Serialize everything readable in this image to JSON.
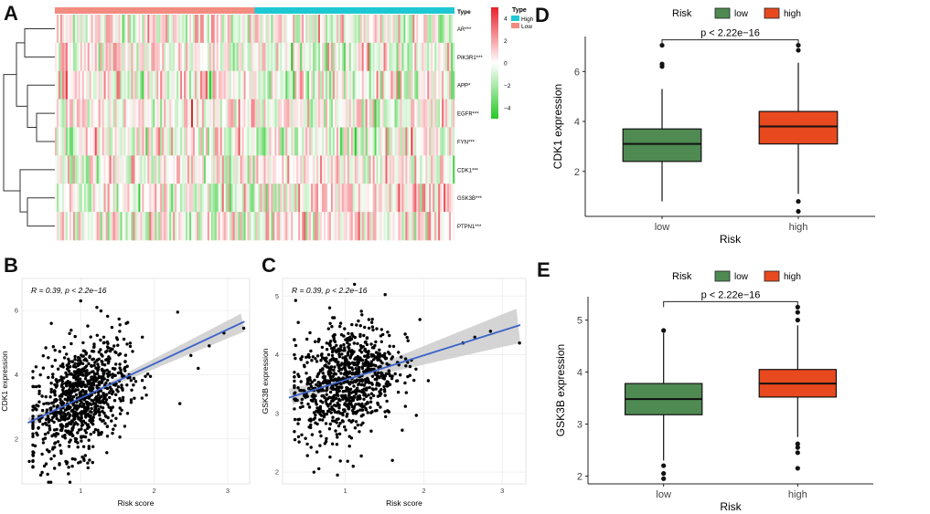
{
  "panel_letters": {
    "a": "A",
    "b": "B",
    "c": "C",
    "d": "D",
    "e": "E"
  },
  "colors": {
    "low_box": "#4e8a52",
    "high_box": "#e8491f",
    "type_high": "#1ec8d2",
    "type_low": "#f28b80",
    "heat_pos": "#e8202a",
    "heat_neg": "#28c828",
    "reg_line": "#3a62c9",
    "ci_band": "#c9c9c9"
  },
  "chart_data": [
    {
      "id": "A",
      "type": "heatmap",
      "annotation_title": "Type",
      "genes": [
        "AR***",
        "PIK3R1***",
        "APP*",
        "EGFR***",
        "FYN***",
        "CDK1***",
        "GSK3B***",
        "PTPN1***"
      ],
      "gene_direction_in_high": [
        -1,
        -1,
        -1,
        -1,
        -1,
        1,
        1,
        1
      ],
      "groups": [
        {
          "name": "Low",
          "fraction": 0.5
        },
        {
          "name": "High",
          "fraction": 0.5
        }
      ],
      "legend_type": {
        "title": "Type",
        "items": [
          "High",
          "Low"
        ]
      },
      "colorbar": {
        "ticks": [
          4,
          2,
          0,
          -2,
          -4
        ],
        "tick_labels": [
          "4",
          "2",
          "0",
          "−2",
          "−4"
        ],
        "min": -5,
        "max": 5
      }
    },
    {
      "id": "B",
      "type": "scatter",
      "xlabel": "Risk score",
      "ylabel": "CDK1 expression",
      "xlim": [
        0.2,
        3.3
      ],
      "ylim": [
        0.6,
        7.0
      ],
      "xticks": [
        1,
        2,
        3
      ],
      "yticks": [
        2,
        4,
        6
      ],
      "annotation": "R = 0.39, p < 2.2e−16",
      "fit": {
        "intercept": 2.2,
        "slope": 1.07
      },
      "n_points": 900,
      "outliers": [
        [
          0.6,
          5.6
        ],
        [
          1.0,
          6.3
        ],
        [
          1.22,
          6.1
        ],
        [
          1.62,
          5.6
        ],
        [
          2.32,
          5.95
        ],
        [
          2.5,
          4.6
        ],
        [
          2.75,
          4.9
        ],
        [
          2.95,
          5.3
        ],
        [
          3.22,
          5.45
        ],
        [
          0.3,
          1.3
        ],
        [
          0.55,
          0.9
        ],
        [
          1.1,
          1.1
        ],
        [
          2.35,
          3.1
        ],
        [
          2.6,
          4.2
        ]
      ]
    },
    {
      "id": "C",
      "type": "scatter",
      "xlabel": "Risk score",
      "ylabel": "GSK3B expression",
      "xlim": [
        0.2,
        3.3
      ],
      "ylim": [
        1.8,
        5.3
      ],
      "xticks": [
        1,
        2,
        3
      ],
      "yticks": [
        2,
        3,
        4,
        5
      ],
      "annotation": "R = 0.39, p < 2.2e−16",
      "fit": {
        "intercept": 3.15,
        "slope": 0.42
      },
      "n_points": 900,
      "outliers": [
        [
          0.4,
          4.55
        ],
        [
          0.8,
          4.8
        ],
        [
          1.3,
          4.6
        ],
        [
          1.95,
          4.6
        ],
        [
          2.5,
          4.2
        ],
        [
          2.65,
          4.3
        ],
        [
          3.22,
          4.2
        ],
        [
          2.85,
          4.4
        ],
        [
          0.6,
          2.0
        ],
        [
          0.9,
          1.95
        ],
        [
          1.1,
          2.1
        ],
        [
          1.6,
          2.2
        ]
      ]
    },
    {
      "id": "D",
      "type": "box",
      "legend_title": "Risk",
      "legend_items": [
        "low",
        "high"
      ],
      "categories": [
        "low",
        "high"
      ],
      "xlabel": "Risk",
      "ylabel": "CDK1 expression",
      "ylim": [
        0.2,
        7.4
      ],
      "yticks": [
        2,
        4,
        6
      ],
      "pvalue": "p < 2.22e−16",
      "boxes": [
        {
          "name": "low",
          "whisker_low": 0.8,
          "q1": 2.4,
          "median": 3.1,
          "q3": 3.7,
          "whisker_high": 5.3,
          "outliers": [
            6.2,
            6.3,
            7.05
          ]
        },
        {
          "name": "high",
          "whisker_low": 1.1,
          "q1": 3.1,
          "median": 3.8,
          "q3": 4.4,
          "whisker_high": 6.35,
          "outliers": [
            0.4,
            0.8,
            6.85,
            7.05
          ]
        }
      ]
    },
    {
      "id": "E",
      "type": "box",
      "legend_title": "Risk",
      "legend_items": [
        "low",
        "high"
      ],
      "categories": [
        "low",
        "high"
      ],
      "xlabel": "Risk",
      "ylabel": "GSK3B expression",
      "ylim": [
        1.85,
        5.45
      ],
      "yticks": [
        2,
        3,
        4,
        5
      ],
      "pvalue": "p < 2.22e−16",
      "boxes": [
        {
          "name": "low",
          "whisker_low": 2.3,
          "q1": 3.18,
          "median": 3.48,
          "q3": 3.78,
          "whisker_high": 4.75,
          "outliers": [
            1.95,
            2.05,
            2.2,
            4.8
          ]
        },
        {
          "name": "high",
          "whisker_low": 2.75,
          "q1": 3.52,
          "median": 3.78,
          "q3": 4.05,
          "whisker_high": 4.9,
          "outliers": [
            2.15,
            2.45,
            2.55,
            2.62,
            5.0,
            5.15,
            5.25
          ]
        }
      ]
    }
  ]
}
